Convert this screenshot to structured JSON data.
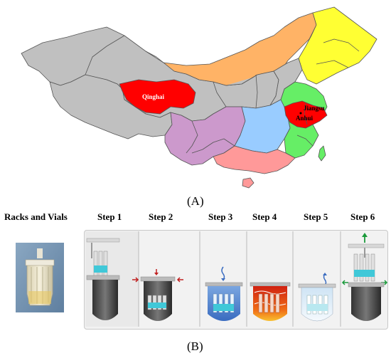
{
  "panel_a": {
    "letter": "(A)",
    "labels": {
      "qinghai": "Qinghai",
      "jiangsu": "Jiangsu",
      "anhui": "Anhui"
    },
    "colors": {
      "highlight": "#ff0000",
      "northeast": "#ffff33",
      "north": "#ffb366",
      "west": "#c0c0c0",
      "southwest": "#cc99cc",
      "central": "#99ccff",
      "east": "#66ee66",
      "south": "#ff9999"
    }
  },
  "panel_b": {
    "letter": "(B)",
    "headers": [
      "Racks and Vials",
      "Step 1",
      "Step 2",
      "Step 3",
      "Step 4",
      "Step 5",
      "Step 6"
    ]
  }
}
